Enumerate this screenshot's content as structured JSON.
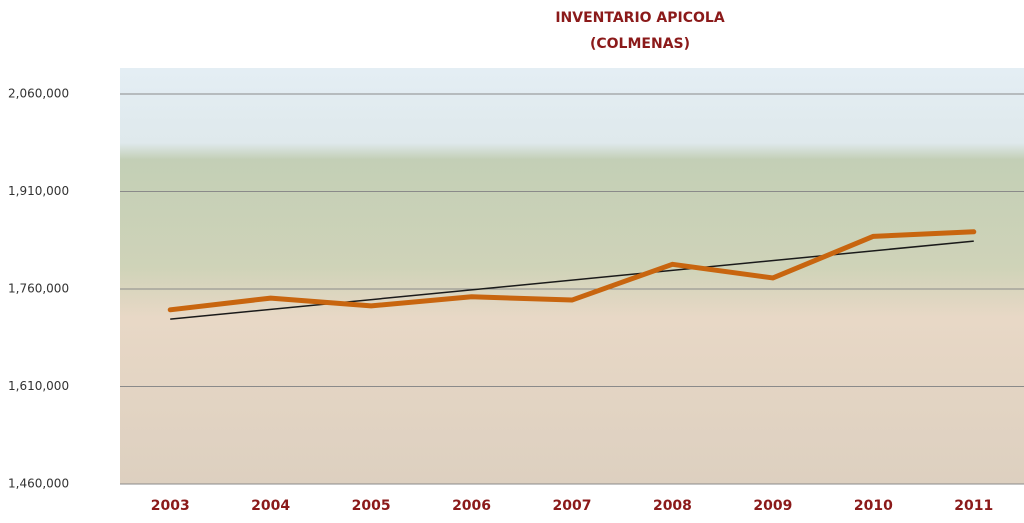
{
  "chart_data": {
    "type": "line",
    "title": "INVENTARIO APICOLA",
    "subtitle": "(COLMENAS)",
    "categories": [
      "2003",
      "2004",
      "2005",
      "2006",
      "2007",
      "2008",
      "2009",
      "2010",
      "2011"
    ],
    "series": [
      {
        "color": "#c8650f",
        "values": [
          1728000,
          1746000,
          1734000,
          1748000,
          1743000,
          1798000,
          1777000,
          1841000,
          1848000
        ]
      }
    ],
    "trendline": true,
    "trend_color": "#1a1a1a",
    "ylim": [
      1460000,
      2100000
    ],
    "yticks": [
      {
        "value": 1460000,
        "label": "1,460,000"
      },
      {
        "value": 1610000,
        "label": "1,610,000"
      },
      {
        "value": 1760000,
        "label": "1,760,000"
      },
      {
        "value": 1910000,
        "label": "1,910,000"
      },
      {
        "value": 2060000,
        "label": "2,060,000"
      }
    ],
    "grid": true
  }
}
